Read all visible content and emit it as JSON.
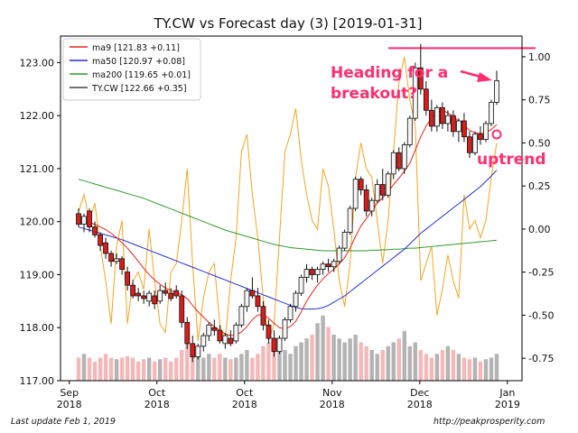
{
  "chart_data": {
    "type": "candlestick",
    "title": "TY.CW vs Forecast day (3)  [2019-01-31]",
    "x_tick_labels": [
      {
        "month": "Sep",
        "year": "2018",
        "date": "2018-09-01"
      },
      {
        "month": "Oct",
        "year": "2018",
        "date": "2018-10-01"
      },
      {
        "month": "Oct",
        "year": "2018",
        "date": "2018-10-31"
      },
      {
        "month": "Nov",
        "year": "2018",
        "date": "2018-11-30"
      },
      {
        "month": "Dec",
        "year": "2018",
        "date": "2018-12-30"
      },
      {
        "month": "Jan",
        "year": "2019",
        "date": "2019-01-29"
      }
    ],
    "x_range": [
      "2018-08-29",
      "2019-02-03"
    ],
    "left_axis": {
      "ylim": [
        117.0,
        123.5
      ],
      "ticks": [
        "117.00",
        "118.00",
        "119.00",
        "120.00",
        "121.00",
        "122.00",
        "123.00"
      ]
    },
    "right_axis": {
      "ylim": [
        -0.88,
        1.12
      ],
      "ticks": [
        "1.00",
        "0.75",
        "0.50",
        "0.25",
        "0.00",
        "-0.25",
        "-0.50",
        "-0.75"
      ]
    },
    "legend": {
      "placement": "top-left",
      "entries": [
        {
          "label": "ma9 [121.83 +0.11]",
          "color": "#e8241e"
        },
        {
          "label": "ma50 [120.97 +0.08]",
          "color": "#2430d8"
        },
        {
          "label": "ma200 [119.65 +0.01]",
          "color": "#2f9a2f"
        },
        {
          "label": "TY.CW [122.66 +0.35]",
          "color": "#444444"
        }
      ]
    },
    "annotations": [
      {
        "text": "Heading for a",
        "color": "#ff2d6e"
      },
      {
        "text": "breakout?",
        "color": "#ff2d6e"
      },
      {
        "text": "uptrend",
        "color": "#ff2d6e"
      }
    ],
    "forecast_threshold": 1.05,
    "colors": {
      "up": "#f5f5f5",
      "down": "#d91c1c",
      "candle_edge": "#111111",
      "forecast": "#f4a51c",
      "vol_up": "#b3b3b3",
      "vol_down": "#f4b8b8",
      "annotation": "#ff2d6e"
    },
    "candles": [
      [
        120.15,
        120.25,
        119.9,
        119.95
      ],
      [
        119.95,
        120.15,
        119.8,
        120.1
      ],
      [
        120.2,
        120.25,
        119.8,
        119.9
      ],
      [
        119.9,
        120.0,
        119.7,
        119.75
      ],
      [
        119.75,
        119.8,
        119.45,
        119.55
      ],
      [
        119.6,
        119.7,
        119.3,
        119.4
      ],
      [
        119.4,
        119.45,
        119.15,
        119.25
      ],
      [
        119.25,
        119.4,
        119.2,
        119.3
      ],
      [
        119.3,
        119.35,
        119.0,
        119.1
      ],
      [
        119.05,
        119.15,
        118.7,
        118.8
      ],
      [
        118.8,
        118.9,
        118.55,
        118.6
      ],
      [
        118.65,
        118.75,
        118.5,
        118.6
      ],
      [
        118.6,
        118.7,
        118.45,
        118.55
      ],
      [
        118.5,
        118.7,
        118.4,
        118.65
      ],
      [
        118.6,
        118.7,
        118.35,
        118.45
      ],
      [
        118.5,
        118.8,
        118.45,
        118.7
      ],
      [
        118.7,
        118.85,
        118.6,
        118.65
      ],
      [
        118.65,
        118.75,
        118.5,
        118.55
      ],
      [
        118.7,
        118.8,
        118.55,
        118.6
      ],
      [
        118.6,
        118.7,
        118.0,
        118.1
      ],
      [
        118.1,
        118.2,
        117.6,
        117.7
      ],
      [
        117.7,
        117.85,
        117.35,
        117.45
      ],
      [
        117.45,
        117.7,
        117.4,
        117.65
      ],
      [
        117.65,
        117.9,
        117.55,
        117.85
      ],
      [
        117.85,
        118.1,
        117.75,
        118.05
      ],
      [
        118.0,
        118.15,
        117.85,
        117.95
      ],
      [
        117.95,
        118.05,
        117.7,
        117.75
      ],
      [
        117.7,
        117.9,
        117.6,
        117.85
      ],
      [
        117.8,
        117.95,
        117.65,
        117.7
      ],
      [
        117.75,
        118.1,
        117.7,
        118.05
      ],
      [
        118.05,
        118.45,
        118.0,
        118.4
      ],
      [
        118.4,
        118.75,
        118.3,
        118.7
      ],
      [
        118.7,
        118.95,
        118.55,
        118.6
      ],
      [
        118.6,
        118.75,
        118.3,
        118.4
      ],
      [
        118.4,
        118.5,
        117.95,
        118.05
      ],
      [
        118.05,
        118.15,
        117.7,
        117.8
      ],
      [
        117.8,
        117.95,
        117.45,
        117.55
      ],
      [
        117.55,
        117.85,
        117.5,
        117.8
      ],
      [
        117.8,
        118.2,
        117.75,
        118.15
      ],
      [
        118.15,
        118.45,
        118.1,
        118.4
      ],
      [
        118.4,
        118.7,
        118.3,
        118.65
      ],
      [
        118.65,
        119.0,
        118.6,
        118.95
      ],
      [
        118.95,
        119.2,
        118.85,
        119.1
      ],
      [
        119.1,
        119.15,
        118.9,
        119.0
      ],
      [
        119.0,
        119.15,
        118.85,
        119.1
      ],
      [
        119.1,
        119.25,
        119.0,
        119.2
      ],
      [
        119.2,
        119.3,
        119.05,
        119.15
      ],
      [
        119.15,
        119.3,
        119.05,
        119.25
      ],
      [
        119.25,
        119.55,
        119.2,
        119.5
      ],
      [
        119.5,
        119.85,
        119.45,
        119.8
      ],
      [
        119.8,
        120.3,
        119.75,
        120.25
      ],
      [
        120.25,
        120.85,
        120.2,
        120.8
      ],
      [
        120.8,
        120.85,
        120.5,
        120.6
      ],
      [
        120.6,
        120.7,
        120.1,
        120.2
      ],
      [
        120.2,
        120.45,
        120.1,
        120.4
      ],
      [
        120.4,
        120.8,
        120.35,
        120.7
      ],
      [
        120.7,
        121.0,
        120.4,
        120.5
      ],
      [
        120.5,
        120.95,
        120.45,
        120.9
      ],
      [
        120.9,
        121.35,
        120.8,
        121.3
      ],
      [
        121.3,
        121.4,
        120.95,
        121.0
      ],
      [
        121.0,
        121.5,
        120.9,
        121.45
      ],
      [
        121.45,
        122.0,
        121.4,
        121.95
      ],
      [
        121.95,
        123.0,
        121.9,
        122.9
      ],
      [
        122.9,
        123.35,
        122.4,
        122.5
      ],
      [
        122.5,
        122.65,
        122.0,
        122.1
      ],
      [
        122.1,
        122.3,
        121.7,
        121.8
      ],
      [
        121.8,
        122.2,
        121.7,
        122.15
      ],
      [
        122.15,
        122.25,
        121.75,
        121.85
      ],
      [
        121.85,
        122.1,
        121.7,
        122.0
      ],
      [
        122.0,
        122.1,
        121.6,
        121.7
      ],
      [
        121.7,
        121.95,
        121.5,
        121.9
      ],
      [
        121.9,
        122.05,
        121.5,
        121.6
      ],
      [
        121.6,
        121.7,
        121.2,
        121.3
      ],
      [
        121.3,
        121.7,
        121.25,
        121.65
      ],
      [
        121.65,
        121.8,
        121.45,
        121.55
      ],
      [
        121.55,
        121.9,
        121.5,
        121.85
      ],
      [
        121.85,
        122.3,
        121.8,
        122.25
      ],
      [
        122.25,
        122.85,
        122.2,
        122.66
      ]
    ],
    "ma9": [
      120.0,
      120.0,
      119.98,
      119.95,
      119.9,
      119.85,
      119.78,
      119.7,
      119.6,
      119.5,
      119.38,
      119.25,
      119.12,
      119.0,
      118.9,
      118.82,
      118.75,
      118.7,
      118.66,
      118.62,
      118.55,
      118.42,
      118.3,
      118.2,
      118.1,
      118.02,
      117.95,
      117.88,
      117.85,
      117.86,
      117.92,
      118.02,
      118.15,
      118.24,
      118.24,
      118.18,
      118.08,
      118.0,
      117.98,
      118.02,
      118.12,
      118.3,
      118.5,
      118.66,
      118.8,
      118.92,
      119.02,
      119.1,
      119.2,
      119.32,
      119.5,
      119.72,
      119.92,
      120.06,
      120.2,
      120.35,
      120.45,
      120.56,
      120.7,
      120.82,
      120.95,
      121.1,
      121.35,
      121.6,
      121.8,
      121.95,
      122.05,
      122.1,
      122.05,
      121.98,
      121.9,
      121.82,
      121.72,
      121.68,
      121.66,
      121.68,
      121.74,
      121.83
    ],
    "ma50": [
      119.9,
      119.87,
      119.84,
      119.81,
      119.78,
      119.75,
      119.72,
      119.69,
      119.66,
      119.62,
      119.58,
      119.54,
      119.5,
      119.46,
      119.42,
      119.38,
      119.34,
      119.3,
      119.26,
      119.22,
      119.18,
      119.14,
      119.1,
      119.06,
      119.02,
      118.98,
      118.94,
      118.9,
      118.86,
      118.82,
      118.78,
      118.74,
      118.7,
      118.66,
      118.62,
      118.58,
      118.54,
      118.5,
      118.46,
      118.42,
      118.38,
      118.36,
      118.35,
      118.35,
      118.36,
      118.38,
      118.42,
      118.48,
      118.54,
      118.6,
      118.68,
      118.76,
      118.84,
      118.92,
      119.0,
      119.08,
      119.16,
      119.24,
      119.32,
      119.4,
      119.48,
      119.58,
      119.68,
      119.78,
      119.86,
      119.94,
      120.02,
      120.1,
      120.18,
      120.26,
      120.34,
      120.42,
      120.5,
      120.58,
      120.66,
      120.76,
      120.86,
      120.97
    ],
    "ma200": [
      120.8,
      120.77,
      120.74,
      120.71,
      120.68,
      120.65,
      120.62,
      120.59,
      120.56,
      120.53,
      120.5,
      120.47,
      120.44,
      120.4,
      120.36,
      120.32,
      120.28,
      120.24,
      120.2,
      120.16,
      120.12,
      120.08,
      120.04,
      120.0,
      119.96,
      119.92,
      119.88,
      119.84,
      119.81,
      119.78,
      119.75,
      119.72,
      119.69,
      119.66,
      119.63,
      119.6,
      119.57,
      119.55,
      119.53,
      119.51,
      119.5,
      119.49,
      119.48,
      119.47,
      119.46,
      119.45,
      119.45,
      119.45,
      119.45,
      119.45,
      119.45,
      119.45,
      119.45,
      119.45,
      119.46,
      119.46,
      119.47,
      119.47,
      119.48,
      119.48,
      119.49,
      119.5,
      119.5,
      119.51,
      119.52,
      119.53,
      119.54,
      119.55,
      119.56,
      119.57,
      119.58,
      119.59,
      119.6,
      119.61,
      119.62,
      119.63,
      119.64,
      119.65
    ],
    "forecast": [
      0.1,
      0.2,
      0.05,
      0.15,
      -0.1,
      -0.3,
      -0.55,
      -0.1,
      0.05,
      -0.55,
      -0.3,
      -0.25,
      -0.35,
      0.0,
      -0.3,
      -0.55,
      -0.6,
      -0.25,
      -0.2,
      0.05,
      0.35,
      -0.2,
      -0.65,
      -0.4,
      -0.25,
      -0.2,
      -0.55,
      -0.65,
      -0.3,
      -0.05,
      0.45,
      0.55,
      0.2,
      -0.05,
      -0.4,
      -0.65,
      -0.55,
      -0.05,
      0.45,
      0.55,
      0.7,
      0.4,
      0.2,
      0.05,
      0.0,
      0.35,
      0.25,
      0.0,
      -0.3,
      -0.45,
      -0.2,
      0.3,
      0.5,
      0.35,
      0.3,
      0.05,
      -0.2,
      0.05,
      0.45,
      0.85,
      1.0,
      0.75,
      0.6,
      -0.3,
      -0.2,
      -0.1,
      -0.5,
      -0.35,
      -0.15,
      -0.3,
      -0.4,
      0.2,
      0.0,
      0.05,
      -0.05,
      0.05,
      0.3,
      0.5
    ],
    "volume": [
      0.3,
      0.35,
      0.3,
      0.25,
      0.3,
      0.35,
      0.3,
      0.28,
      0.3,
      0.32,
      0.3,
      0.25,
      0.28,
      0.3,
      0.25,
      0.28,
      0.3,
      0.25,
      0.3,
      0.4,
      0.55,
      0.45,
      0.35,
      0.3,
      0.35,
      0.3,
      0.35,
      0.3,
      0.28,
      0.3,
      0.35,
      0.4,
      0.3,
      0.35,
      0.45,
      0.5,
      0.55,
      0.45,
      0.4,
      0.35,
      0.45,
      0.5,
      0.55,
      0.6,
      0.75,
      0.85,
      0.7,
      0.6,
      0.55,
      0.5,
      0.55,
      0.6,
      0.5,
      0.45,
      0.4,
      0.35,
      0.4,
      0.45,
      0.5,
      0.55,
      0.65,
      0.45,
      0.5,
      0.4,
      0.35,
      0.3,
      0.35,
      0.4,
      0.45,
      0.4,
      0.35,
      0.3,
      0.28,
      0.3,
      0.25,
      0.28,
      0.3,
      0.35
    ]
  },
  "footer": {
    "left": "Last update Feb  1, 2019",
    "right": "http://peakprosperity.com"
  }
}
